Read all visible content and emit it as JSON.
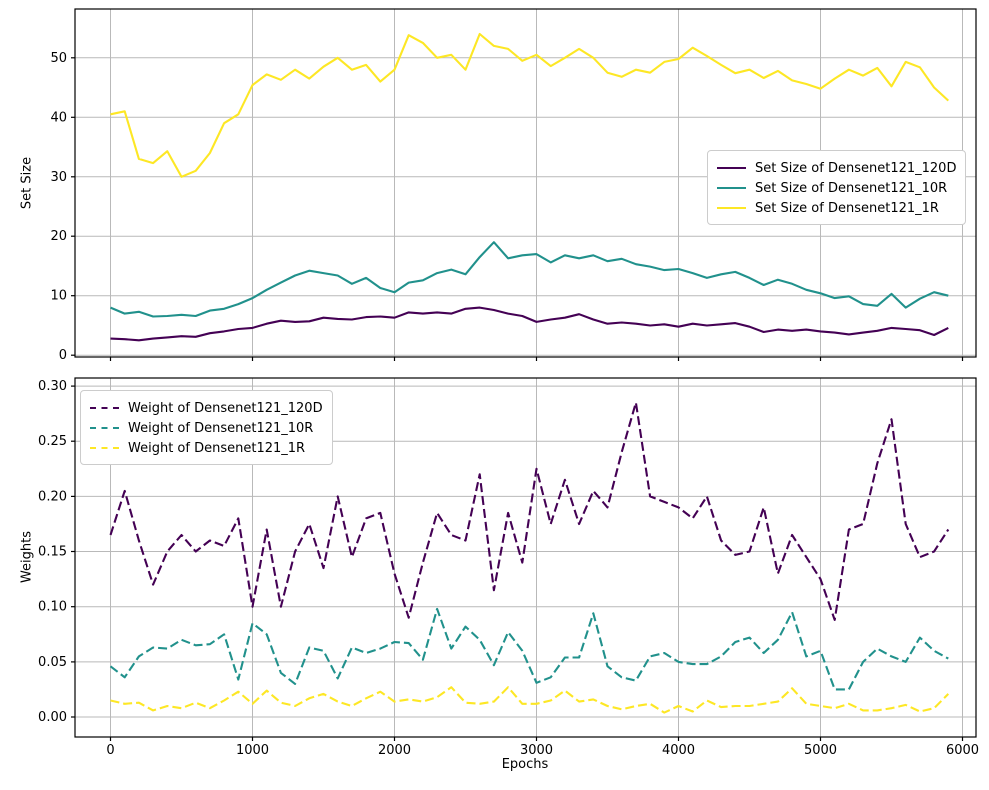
{
  "figure_background": "#ffffff",
  "colors": {
    "densenet121_120d": "#440154",
    "densenet121_10r": "#21918c",
    "densenet121_1r": "#fde725",
    "grid": "#b9b9b9",
    "spine": "#000000",
    "text": "#000000",
    "legend_border": "#cccccc"
  },
  "chart_data": [
    {
      "type": "line",
      "title": "",
      "xlabel": "",
      "ylabel": "Set Size",
      "grid": true,
      "legend_position": "center right",
      "xlim": [
        -250,
        6095
      ],
      "ylim": [
        -0.3,
        58.2
      ],
      "x_ticks": [
        0,
        1000,
        2000,
        3000,
        4000,
        5000,
        6000
      ],
      "x_tick_labels_visible": false,
      "y_ticks": [
        "0",
        "10",
        "20",
        "30",
        "40",
        "50"
      ],
      "x": [
        0,
        100,
        200,
        300,
        400,
        500,
        600,
        700,
        800,
        900,
        1000,
        1100,
        1200,
        1300,
        1400,
        1500,
        1600,
        1700,
        1800,
        1900,
        2000,
        2100,
        2200,
        2300,
        2400,
        2500,
        2600,
        2700,
        2800,
        2900,
        3000,
        3100,
        3200,
        3300,
        3400,
        3500,
        3600,
        3700,
        3800,
        3900,
        4000,
        4100,
        4200,
        4300,
        4400,
        4500,
        4600,
        4700,
        4800,
        4900,
        5000,
        5100,
        5200,
        5300,
        5400,
        5500,
        5600,
        5700,
        5800,
        5900
      ],
      "series": [
        {
          "name": "Set Size of Densenet121_120D",
          "color_key": "densenet121_120d",
          "dash": false,
          "values": [
            2.8,
            2.7,
            2.5,
            2.8,
            3.0,
            3.2,
            3.1,
            3.7,
            4.0,
            4.4,
            4.6,
            5.3,
            5.8,
            5.6,
            5.7,
            6.3,
            6.1,
            6.0,
            6.4,
            6.5,
            6.3,
            7.2,
            7.0,
            7.2,
            7.0,
            7.8,
            8.0,
            7.6,
            7.0,
            6.6,
            5.6,
            6.0,
            6.3,
            6.9,
            6.0,
            5.3,
            5.5,
            5.3,
            5.0,
            5.2,
            4.8,
            5.3,
            5.0,
            5.2,
            5.4,
            4.8,
            3.9,
            4.3,
            4.1,
            4.3,
            4.0,
            3.8,
            3.5,
            3.8,
            4.1,
            4.6,
            4.4,
            4.2,
            3.4,
            4.6
          ]
        },
        {
          "name": "Set Size of Densenet121_10R",
          "color_key": "densenet121_10r",
          "dash": false,
          "values": [
            8.0,
            7.0,
            7.3,
            6.5,
            6.6,
            6.8,
            6.6,
            7.5,
            7.8,
            8.6,
            9.6,
            11.0,
            12.2,
            13.4,
            14.2,
            13.8,
            13.4,
            12.0,
            13.0,
            11.3,
            10.6,
            12.2,
            12.6,
            13.8,
            14.4,
            13.6,
            16.5,
            19.0,
            16.3,
            16.8,
            17.0,
            15.6,
            16.8,
            16.3,
            16.8,
            15.8,
            16.2,
            15.3,
            14.9,
            14.3,
            14.5,
            13.8,
            13.0,
            13.6,
            14.0,
            13.0,
            11.8,
            12.7,
            12.0,
            11.0,
            10.4,
            9.6,
            9.9,
            8.6,
            8.3,
            10.3,
            8.0,
            9.5,
            10.6,
            10.0
          ]
        },
        {
          "name": "Set Size of Densenet121_1R",
          "color_key": "densenet121_1r",
          "dash": false,
          "values": [
            40.5,
            41.0,
            33.0,
            32.3,
            34.3,
            30.0,
            31.0,
            34.0,
            39.0,
            40.5,
            45.4,
            47.2,
            46.3,
            48.0,
            46.5,
            48.5,
            50.0,
            48.0,
            48.8,
            46.0,
            48.0,
            53.8,
            52.5,
            50.0,
            50.5,
            48.0,
            54.0,
            52.0,
            51.5,
            49.5,
            50.5,
            48.6,
            50.0,
            51.5,
            50.0,
            47.5,
            46.8,
            48.0,
            47.5,
            49.3,
            49.8,
            51.7,
            50.3,
            48.8,
            47.4,
            48.0,
            46.6,
            47.8,
            46.2,
            45.6,
            44.8,
            46.5,
            48.0,
            47.0,
            48.3,
            45.2,
            49.3,
            48.4,
            45.0,
            42.8
          ]
        }
      ]
    },
    {
      "type": "line",
      "title": "",
      "xlabel": "Epochs",
      "ylabel": "Weights",
      "grid": true,
      "legend_position": "upper left",
      "xlim": [
        -250,
        6095
      ],
      "ylim": [
        -0.0181,
        0.3073
      ],
      "x_ticks": [
        0,
        1000,
        2000,
        3000,
        4000,
        5000,
        6000
      ],
      "x_tick_labels_visible": true,
      "y_ticks": [
        "0.00",
        "0.05",
        "0.10",
        "0.15",
        "0.20",
        "0.25",
        "0.30"
      ],
      "x": [
        0,
        100,
        200,
        300,
        400,
        500,
        600,
        700,
        800,
        900,
        1000,
        1100,
        1200,
        1300,
        1400,
        1500,
        1600,
        1700,
        1800,
        1900,
        2000,
        2100,
        2200,
        2300,
        2400,
        2500,
        2600,
        2700,
        2800,
        2900,
        3000,
        3100,
        3200,
        3300,
        3400,
        3500,
        3600,
        3700,
        3800,
        3900,
        4000,
        4100,
        4200,
        4300,
        4400,
        4500,
        4600,
        4700,
        4800,
        4900,
        5000,
        5100,
        5200,
        5300,
        5400,
        5500,
        5600,
        5700,
        5800,
        5900
      ],
      "series": [
        {
          "name": "Weight of Densenet121_120D",
          "color_key": "densenet121_120d",
          "dash": true,
          "values": [
            0.165,
            0.205,
            0.16,
            0.12,
            0.15,
            0.165,
            0.15,
            0.16,
            0.155,
            0.18,
            0.1,
            0.17,
            0.1,
            0.15,
            0.175,
            0.135,
            0.2,
            0.145,
            0.18,
            0.185,
            0.13,
            0.09,
            0.14,
            0.185,
            0.165,
            0.16,
            0.22,
            0.115,
            0.185,
            0.14,
            0.225,
            0.175,
            0.215,
            0.175,
            0.205,
            0.19,
            0.24,
            0.285,
            0.2,
            0.195,
            0.19,
            0.18,
            0.2,
            0.16,
            0.147,
            0.15,
            0.19,
            0.13,
            0.165,
            0.145,
            0.125,
            0.088,
            0.17,
            0.175,
            0.23,
            0.27,
            0.175,
            0.145,
            0.15,
            0.17
          ]
        },
        {
          "name": "Weight of Densenet121_10R",
          "color_key": "densenet121_10r",
          "dash": true,
          "values": [
            0.046,
            0.036,
            0.055,
            0.063,
            0.062,
            0.07,
            0.065,
            0.066,
            0.075,
            0.034,
            0.085,
            0.075,
            0.04,
            0.03,
            0.063,
            0.06,
            0.035,
            0.063,
            0.058,
            0.062,
            0.068,
            0.067,
            0.052,
            0.098,
            0.062,
            0.082,
            0.07,
            0.047,
            0.077,
            0.06,
            0.031,
            0.036,
            0.054,
            0.054,
            0.094,
            0.046,
            0.036,
            0.033,
            0.055,
            0.058,
            0.05,
            0.048,
            0.048,
            0.055,
            0.068,
            0.072,
            0.058,
            0.07,
            0.095,
            0.055,
            0.06,
            0.025,
            0.025,
            0.05,
            0.062,
            0.055,
            0.05,
            0.072,
            0.06,
            0.053
          ]
        },
        {
          "name": "Weight of Densenet121_1R",
          "color_key": "densenet121_1r",
          "dash": true,
          "values": [
            0.015,
            0.012,
            0.013,
            0.006,
            0.01,
            0.008,
            0.013,
            0.008,
            0.015,
            0.023,
            0.012,
            0.024,
            0.013,
            0.01,
            0.017,
            0.021,
            0.014,
            0.01,
            0.017,
            0.023,
            0.014,
            0.016,
            0.014,
            0.018,
            0.027,
            0.013,
            0.012,
            0.014,
            0.027,
            0.012,
            0.012,
            0.015,
            0.024,
            0.014,
            0.016,
            0.01,
            0.007,
            0.01,
            0.012,
            0.004,
            0.01,
            0.005,
            0.015,
            0.009,
            0.01,
            0.01,
            0.012,
            0.014,
            0.026,
            0.012,
            0.01,
            0.008,
            0.012,
            0.006,
            0.006,
            0.008,
            0.011,
            0.005,
            0.008,
            0.021
          ]
        }
      ]
    }
  ]
}
